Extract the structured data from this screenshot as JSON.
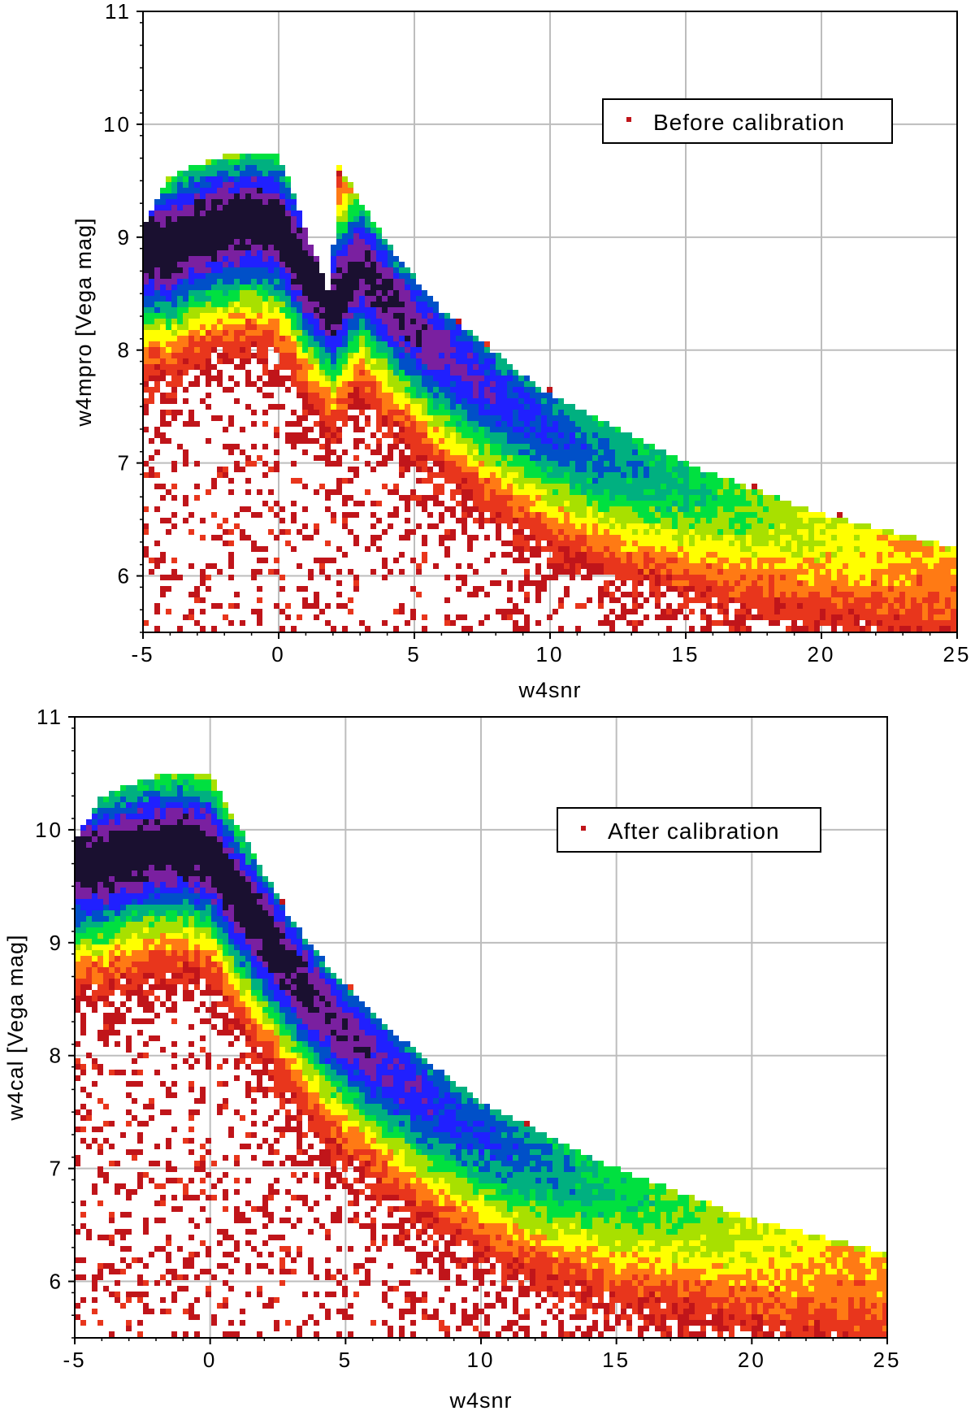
{
  "chart_data": [
    {
      "type": "scatter",
      "subtype": "density-scatter",
      "title": "",
      "xlabel": "w4snr",
      "ylabel": "w4mpro [Vega mag]",
      "xlim": [
        -5,
        25
      ],
      "ylim": [
        5.5,
        11
      ],
      "xticks": [
        -5,
        0,
        5,
        10,
        15,
        20,
        25
      ],
      "yticks": [
        6,
        7,
        8,
        9,
        10,
        11
      ],
      "grid": true,
      "legend": {
        "placement": "top-right",
        "entries": [
          "Before calibration"
        ],
        "marker_color": "#c0151a"
      },
      "series": [
        {
          "name": "Before calibration",
          "ridge": {
            "x": [
              -4,
              -3,
              -2,
              -1,
              0,
              1,
              2,
              3,
              4,
              5,
              6,
              8,
              10,
              12,
              15,
              18,
              20,
              22,
              25
            ],
            "y": [
              8.9,
              9.05,
              9.1,
              9.15,
              9.1,
              8.7,
              8.4,
              8.75,
              8.45,
              8.2,
              8.0,
              7.6,
              7.3,
              7.05,
              6.8,
              6.6,
              6.45,
              6.3,
              6.1
            ]
          },
          "upper_envelope": {
            "x": [
              -5,
              -4,
              -2,
              0,
              2,
              2.05,
              4,
              6,
              10,
              15,
              20,
              25
            ],
            "y": [
              9.1,
              9.55,
              9.72,
              9.75,
              8.4,
              9.7,
              8.95,
              8.35,
              7.6,
              7.0,
              6.55,
              6.25
            ]
          },
          "peak_density_center": [
            0,
            9.05
          ],
          "density_colormap": [
            "#c0151a",
            "#e8361c",
            "#ff7a14",
            "#ffff00",
            "#a8e000",
            "#00e040",
            "#00b080",
            "#0050c8",
            "#2020ff",
            "#7a20a0",
            "#1a1030"
          ]
        }
      ]
    },
    {
      "type": "scatter",
      "subtype": "density-scatter",
      "title": "",
      "xlabel": "w4snr",
      "ylabel": "w4cal [Vega mag]",
      "xlim": [
        -5,
        25
      ],
      "ylim": [
        5.5,
        11
      ],
      "xticks": [
        -5,
        0,
        5,
        10,
        15,
        20,
        25
      ],
      "yticks": [
        6,
        7,
        8,
        9,
        10,
        11
      ],
      "grid": true,
      "legend": {
        "placement": "top-right",
        "entries": [
          "After calibration"
        ],
        "marker_color": "#c0151a"
      },
      "series": [
        {
          "name": "After calibration",
          "ridge": {
            "x": [
              -4,
              -3,
              -2,
              -1,
              0,
              1,
              2,
              3,
              4,
              5,
              6,
              8,
              10,
              12,
              15,
              18,
              20,
              22,
              25
            ],
            "y": [
              9.7,
              9.8,
              9.85,
              9.85,
              9.8,
              9.4,
              9.1,
              8.75,
              8.45,
              8.2,
              8.0,
              7.6,
              7.3,
              7.05,
              6.8,
              6.6,
              6.45,
              6.3,
              6.1
            ]
          },
          "upper_envelope": {
            "x": [
              -5,
              -4,
              -2,
              0,
              1,
              3,
              5,
              8,
              10,
              15,
              20,
              25
            ],
            "y": [
              9.9,
              10.3,
              10.48,
              10.5,
              10.05,
              9.2,
              8.6,
              7.95,
              7.6,
              7.0,
              6.55,
              6.25
            ]
          },
          "peak_density_center": [
            0,
            9.8
          ],
          "density_colormap": [
            "#c0151a",
            "#e8361c",
            "#ff7a14",
            "#ffff00",
            "#a8e000",
            "#00e040",
            "#00b080",
            "#0050c8",
            "#2020ff",
            "#7a20a0",
            "#1a1030"
          ]
        }
      ]
    }
  ]
}
